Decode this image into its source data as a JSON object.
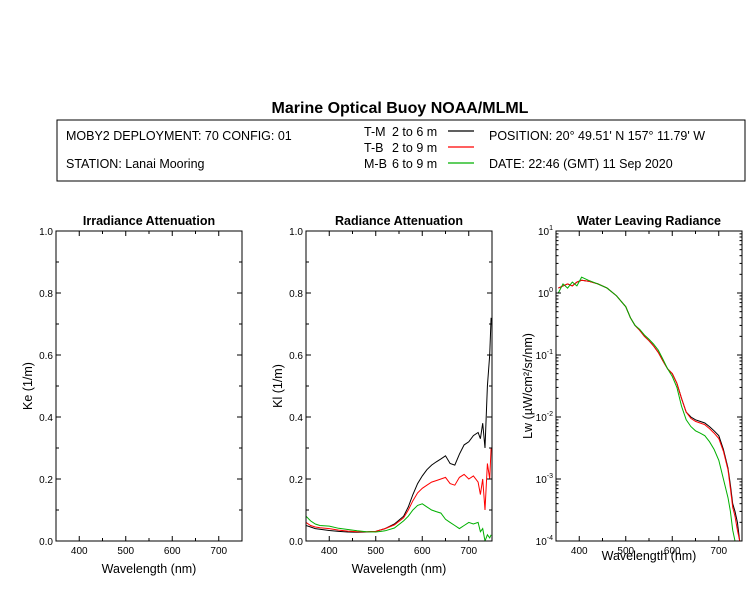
{
  "header": {
    "title": "Marine Optical Buoy NOAA/MLML",
    "deployment": "MOBY2 DEPLOYMENT: 70 CONFIG: 01",
    "station": "STATION: Lanai Mooring",
    "position": "POSITION: 20° 49.51' N   157° 11.79' W",
    "date": "DATE: 22:46 (GMT) 11 Sep 2020",
    "legend": [
      {
        "code": "T-M",
        "range": "2 to 6  m",
        "color": "#000000"
      },
      {
        "code": "T-B",
        "range": "2 to 9  m",
        "color": "#ff0000"
      },
      {
        "code": "M-B",
        "range": "6 to 9  m",
        "color": "#00b000"
      }
    ]
  },
  "colors": {
    "tm": "#000000",
    "tb": "#ff0000",
    "mb": "#00b000"
  },
  "chart_data": [
    {
      "type": "line",
      "title": "Irradiance Attenuation",
      "xlabel": "Wavelength (nm)",
      "ylabel": "Ke  (1/m)",
      "xlim": [
        350,
        750
      ],
      "ylim": [
        0,
        1
      ],
      "xticks": [
        400,
        500,
        600,
        700
      ],
      "yticks": [
        "0.0",
        "0.2",
        "0.4",
        "0.6",
        "0.8",
        "1.0"
      ],
      "series": []
    },
    {
      "type": "line",
      "title": "Radiance Attenuation",
      "xlabel": "Wavelength (nm)",
      "ylabel": "Kl  (1/m)",
      "xlim": [
        350,
        750
      ],
      "ylim": [
        0,
        1
      ],
      "xticks": [
        400,
        500,
        600,
        700
      ],
      "yticks": [
        "0.0",
        "0.2",
        "0.4",
        "0.6",
        "0.8",
        "1.0"
      ],
      "series": [
        {
          "name": "T-M",
          "color": "#000000",
          "x": [
            350,
            360,
            370,
            380,
            400,
            420,
            440,
            460,
            480,
            500,
            520,
            540,
            560,
            570,
            580,
            590,
            600,
            610,
            620,
            630,
            640,
            650,
            660,
            670,
            680,
            690,
            700,
            710,
            720,
            725,
            730,
            735,
            740,
            745,
            748
          ],
          "y": [
            0.05,
            0.045,
            0.04,
            0.038,
            0.034,
            0.031,
            0.029,
            0.028,
            0.029,
            0.031,
            0.04,
            0.055,
            0.08,
            0.11,
            0.15,
            0.185,
            0.21,
            0.23,
            0.245,
            0.255,
            0.265,
            0.275,
            0.25,
            0.245,
            0.28,
            0.31,
            0.32,
            0.34,
            0.35,
            0.33,
            0.38,
            0.3,
            0.5,
            0.6,
            0.72
          ]
        },
        {
          "name": "T-B",
          "color": "#ff0000",
          "x": [
            350,
            360,
            370,
            380,
            400,
            420,
            440,
            460,
            480,
            500,
            520,
            540,
            560,
            570,
            580,
            590,
            600,
            610,
            620,
            630,
            640,
            650,
            660,
            670,
            680,
            690,
            700,
            710,
            720,
            725,
            730,
            735,
            740,
            745,
            748
          ],
          "y": [
            0.06,
            0.05,
            0.045,
            0.043,
            0.04,
            0.035,
            0.032,
            0.03,
            0.03,
            0.031,
            0.04,
            0.052,
            0.075,
            0.1,
            0.13,
            0.155,
            0.17,
            0.18,
            0.19,
            0.195,
            0.2,
            0.205,
            0.185,
            0.18,
            0.205,
            0.215,
            0.2,
            0.21,
            0.19,
            0.15,
            0.2,
            0.1,
            0.25,
            0.2,
            0.3
          ]
        },
        {
          "name": "M-B",
          "color": "#00b000",
          "x": [
            350,
            360,
            370,
            380,
            400,
            420,
            440,
            460,
            480,
            500,
            520,
            540,
            560,
            570,
            580,
            590,
            600,
            610,
            620,
            630,
            640,
            650,
            660,
            670,
            680,
            690,
            700,
            710,
            720,
            725,
            730,
            735,
            740,
            745,
            748
          ],
          "y": [
            0.08,
            0.065,
            0.055,
            0.05,
            0.048,
            0.041,
            0.037,
            0.033,
            0.03,
            0.029,
            0.033,
            0.042,
            0.065,
            0.08,
            0.1,
            0.115,
            0.12,
            0.11,
            0.1,
            0.095,
            0.09,
            0.07,
            0.06,
            0.05,
            0.04,
            0.05,
            0.06,
            0.055,
            0.06,
            0.03,
            0.04,
            0.0,
            0.02,
            0.01,
            0.02
          ]
        }
      ]
    },
    {
      "type": "line",
      "title": "Water Leaving Radiance",
      "xlabel": "Wavelength (nm)",
      "ylabel": "Lw  (µW/cm²/sr/nm)",
      "xlim": [
        350,
        750
      ],
      "ylim": [
        0.0001,
        10
      ],
      "yscale": "log",
      "xticks": [
        400,
        500,
        600,
        700
      ],
      "yticks": [
        {
          "base": "10",
          "exp": "1"
        },
        {
          "base": "10",
          "exp": "0"
        },
        {
          "base": "10",
          "exp": "-1"
        },
        {
          "base": "10",
          "exp": "-2"
        },
        {
          "base": "10",
          "exp": "-3"
        },
        {
          "base": "10",
          "exp": "-4"
        }
      ],
      "series": [
        {
          "name": "T-M",
          "color": "#000000",
          "x": [
            355,
            365,
            375,
            385,
            395,
            405,
            420,
            440,
            460,
            480,
            500,
            510,
            520,
            530,
            540,
            550,
            560,
            570,
            580,
            590,
            600,
            610,
            620,
            630,
            640,
            650,
            660,
            670,
            680,
            690,
            700,
            710,
            720,
            725,
            730,
            735,
            740,
            745
          ],
          "y": [
            1.2,
            1.3,
            1.4,
            1.3,
            1.5,
            1.6,
            1.55,
            1.4,
            1.2,
            0.9,
            0.6,
            0.4,
            0.3,
            0.25,
            0.2,
            0.17,
            0.14,
            0.11,
            0.08,
            0.06,
            0.05,
            0.035,
            0.02,
            0.012,
            0.01,
            0.009,
            0.0085,
            0.008,
            0.007,
            0.006,
            0.005,
            0.003,
            0.0015,
            0.0008,
            0.0004,
            0.0003,
            0.0002,
            0.0001
          ]
        },
        {
          "name": "T-B",
          "color": "#ff0000",
          "x": [
            355,
            365,
            375,
            385,
            395,
            405,
            420,
            440,
            460,
            480,
            500,
            510,
            520,
            530,
            540,
            550,
            560,
            570,
            580,
            590,
            600,
            610,
            620,
            630,
            640,
            650,
            660,
            670,
            680,
            690,
            700,
            710,
            720,
            725,
            730,
            735,
            740,
            745
          ],
          "y": [
            1.2,
            1.3,
            1.4,
            1.3,
            1.5,
            1.6,
            1.55,
            1.4,
            1.2,
            0.9,
            0.6,
            0.4,
            0.3,
            0.25,
            0.2,
            0.17,
            0.14,
            0.11,
            0.08,
            0.06,
            0.05,
            0.035,
            0.02,
            0.012,
            0.0095,
            0.0085,
            0.008,
            0.0075,
            0.0065,
            0.0055,
            0.0045,
            0.0028,
            0.0014,
            0.0007,
            0.00035,
            0.00025,
            0.00015,
            0.0001
          ]
        },
        {
          "name": "M-B",
          "color": "#00b000",
          "x": [
            355,
            365,
            375,
            385,
            395,
            405,
            420,
            440,
            460,
            480,
            500,
            510,
            520,
            530,
            540,
            550,
            560,
            570,
            580,
            590,
            600,
            610,
            620,
            630,
            640,
            650,
            660,
            670,
            680,
            690,
            700,
            710,
            720,
            725,
            730,
            735,
            740,
            745
          ],
          "y": [
            1.0,
            1.4,
            1.2,
            1.5,
            1.3,
            1.8,
            1.6,
            1.4,
            1.2,
            0.9,
            0.6,
            0.4,
            0.3,
            0.26,
            0.21,
            0.18,
            0.15,
            0.12,
            0.085,
            0.06,
            0.045,
            0.03,
            0.015,
            0.009,
            0.007,
            0.006,
            0.0055,
            0.005,
            0.004,
            0.003,
            0.002,
            0.001,
            0.0005,
            0.0003,
            0.00015,
            0.0001,
            0.0001,
            0.0001
          ]
        }
      ]
    }
  ]
}
